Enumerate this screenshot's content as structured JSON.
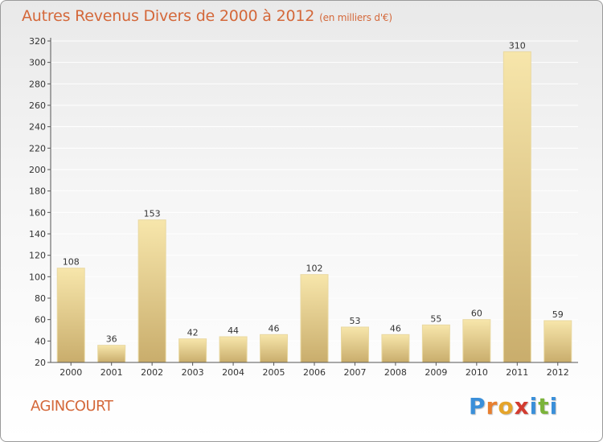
{
  "header": {
    "title": "Autres Revenus Divers de 2000 à 2012",
    "subtitle": "(en milliers d'€)"
  },
  "footer": {
    "commune": "AGINCOURT",
    "logo_letters": [
      "P",
      "r",
      "o",
      "x",
      "i",
      "t",
      "i"
    ],
    "logo_colors": [
      "#3a8fd9",
      "#e87f2f",
      "#e5a42a",
      "#d23b2f",
      "#3a8fd9",
      "#7bb33a",
      "#3a8fd9"
    ]
  },
  "colors": {
    "title": "#d4683a",
    "bar_light": "#f6e3a5",
    "bar_dark": "#cdb271",
    "axis": "#555555",
    "grid": "#ffffff"
  },
  "chart_data": {
    "type": "bar",
    "categories": [
      "2000",
      "2001",
      "2002",
      "2003",
      "2004",
      "2005",
      "2006",
      "2007",
      "2008",
      "2009",
      "2010",
      "2011",
      "2012"
    ],
    "values": [
      108,
      36,
      153,
      42,
      44,
      46,
      102,
      53,
      46,
      55,
      60,
      310,
      59
    ],
    "ylim": [
      20,
      320
    ],
    "yticks": [
      20,
      40,
      60,
      80,
      100,
      120,
      140,
      160,
      180,
      200,
      220,
      240,
      260,
      280,
      300,
      320
    ],
    "grid": true,
    "data_labels": true
  }
}
